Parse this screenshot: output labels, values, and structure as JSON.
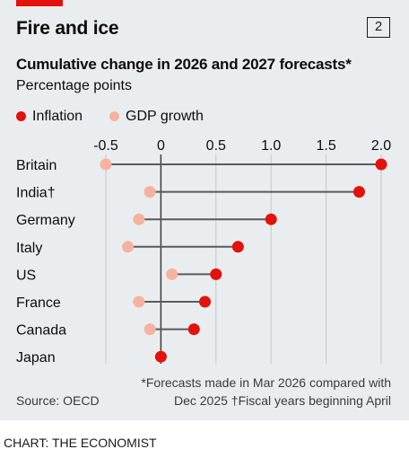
{
  "header": {
    "title": "Fire and ice",
    "number": "2",
    "subtitle": "Cumulative change in 2026 and 2027 forecasts*",
    "unit": "Percentage points"
  },
  "legend": [
    {
      "label": "Inflation",
      "color": "#e3120b"
    },
    {
      "label": "GDP growth",
      "color": "#f6b29f"
    }
  ],
  "chart_data": {
    "type": "dot",
    "categories": [
      "Britain",
      "India†",
      "Germany",
      "Italy",
      "US",
      "France",
      "Canada",
      "Japan"
    ],
    "series": [
      {
        "name": "Inflation",
        "color": "#e3120b",
        "values": [
          2.0,
          1.8,
          1.0,
          0.7,
          0.5,
          0.4,
          0.3,
          0.0
        ]
      },
      {
        "name": "GDP growth",
        "color": "#f6b29f",
        "values": [
          -0.5,
          -0.1,
          -0.2,
          -0.3,
          0.1,
          -0.2,
          -0.1,
          0.0
        ]
      }
    ],
    "x_ticks": [
      -0.5,
      0,
      0.5,
      1.0,
      1.5,
      2.0
    ],
    "x_tick_labels": [
      "-0.5",
      "0",
      "0.5",
      "1.0",
      "1.5",
      "2.0"
    ],
    "xlim": [
      -0.5,
      2.0
    ],
    "tick_position": "top",
    "grid": true
  },
  "footer": {
    "footnote_line1": "*Forecasts made in Mar 2026 compared with",
    "footnote_line2": "Dec 2025   †Fiscal years beginning April",
    "source": "Source: OECD",
    "credit": "CHART: THE ECONOMIST"
  }
}
